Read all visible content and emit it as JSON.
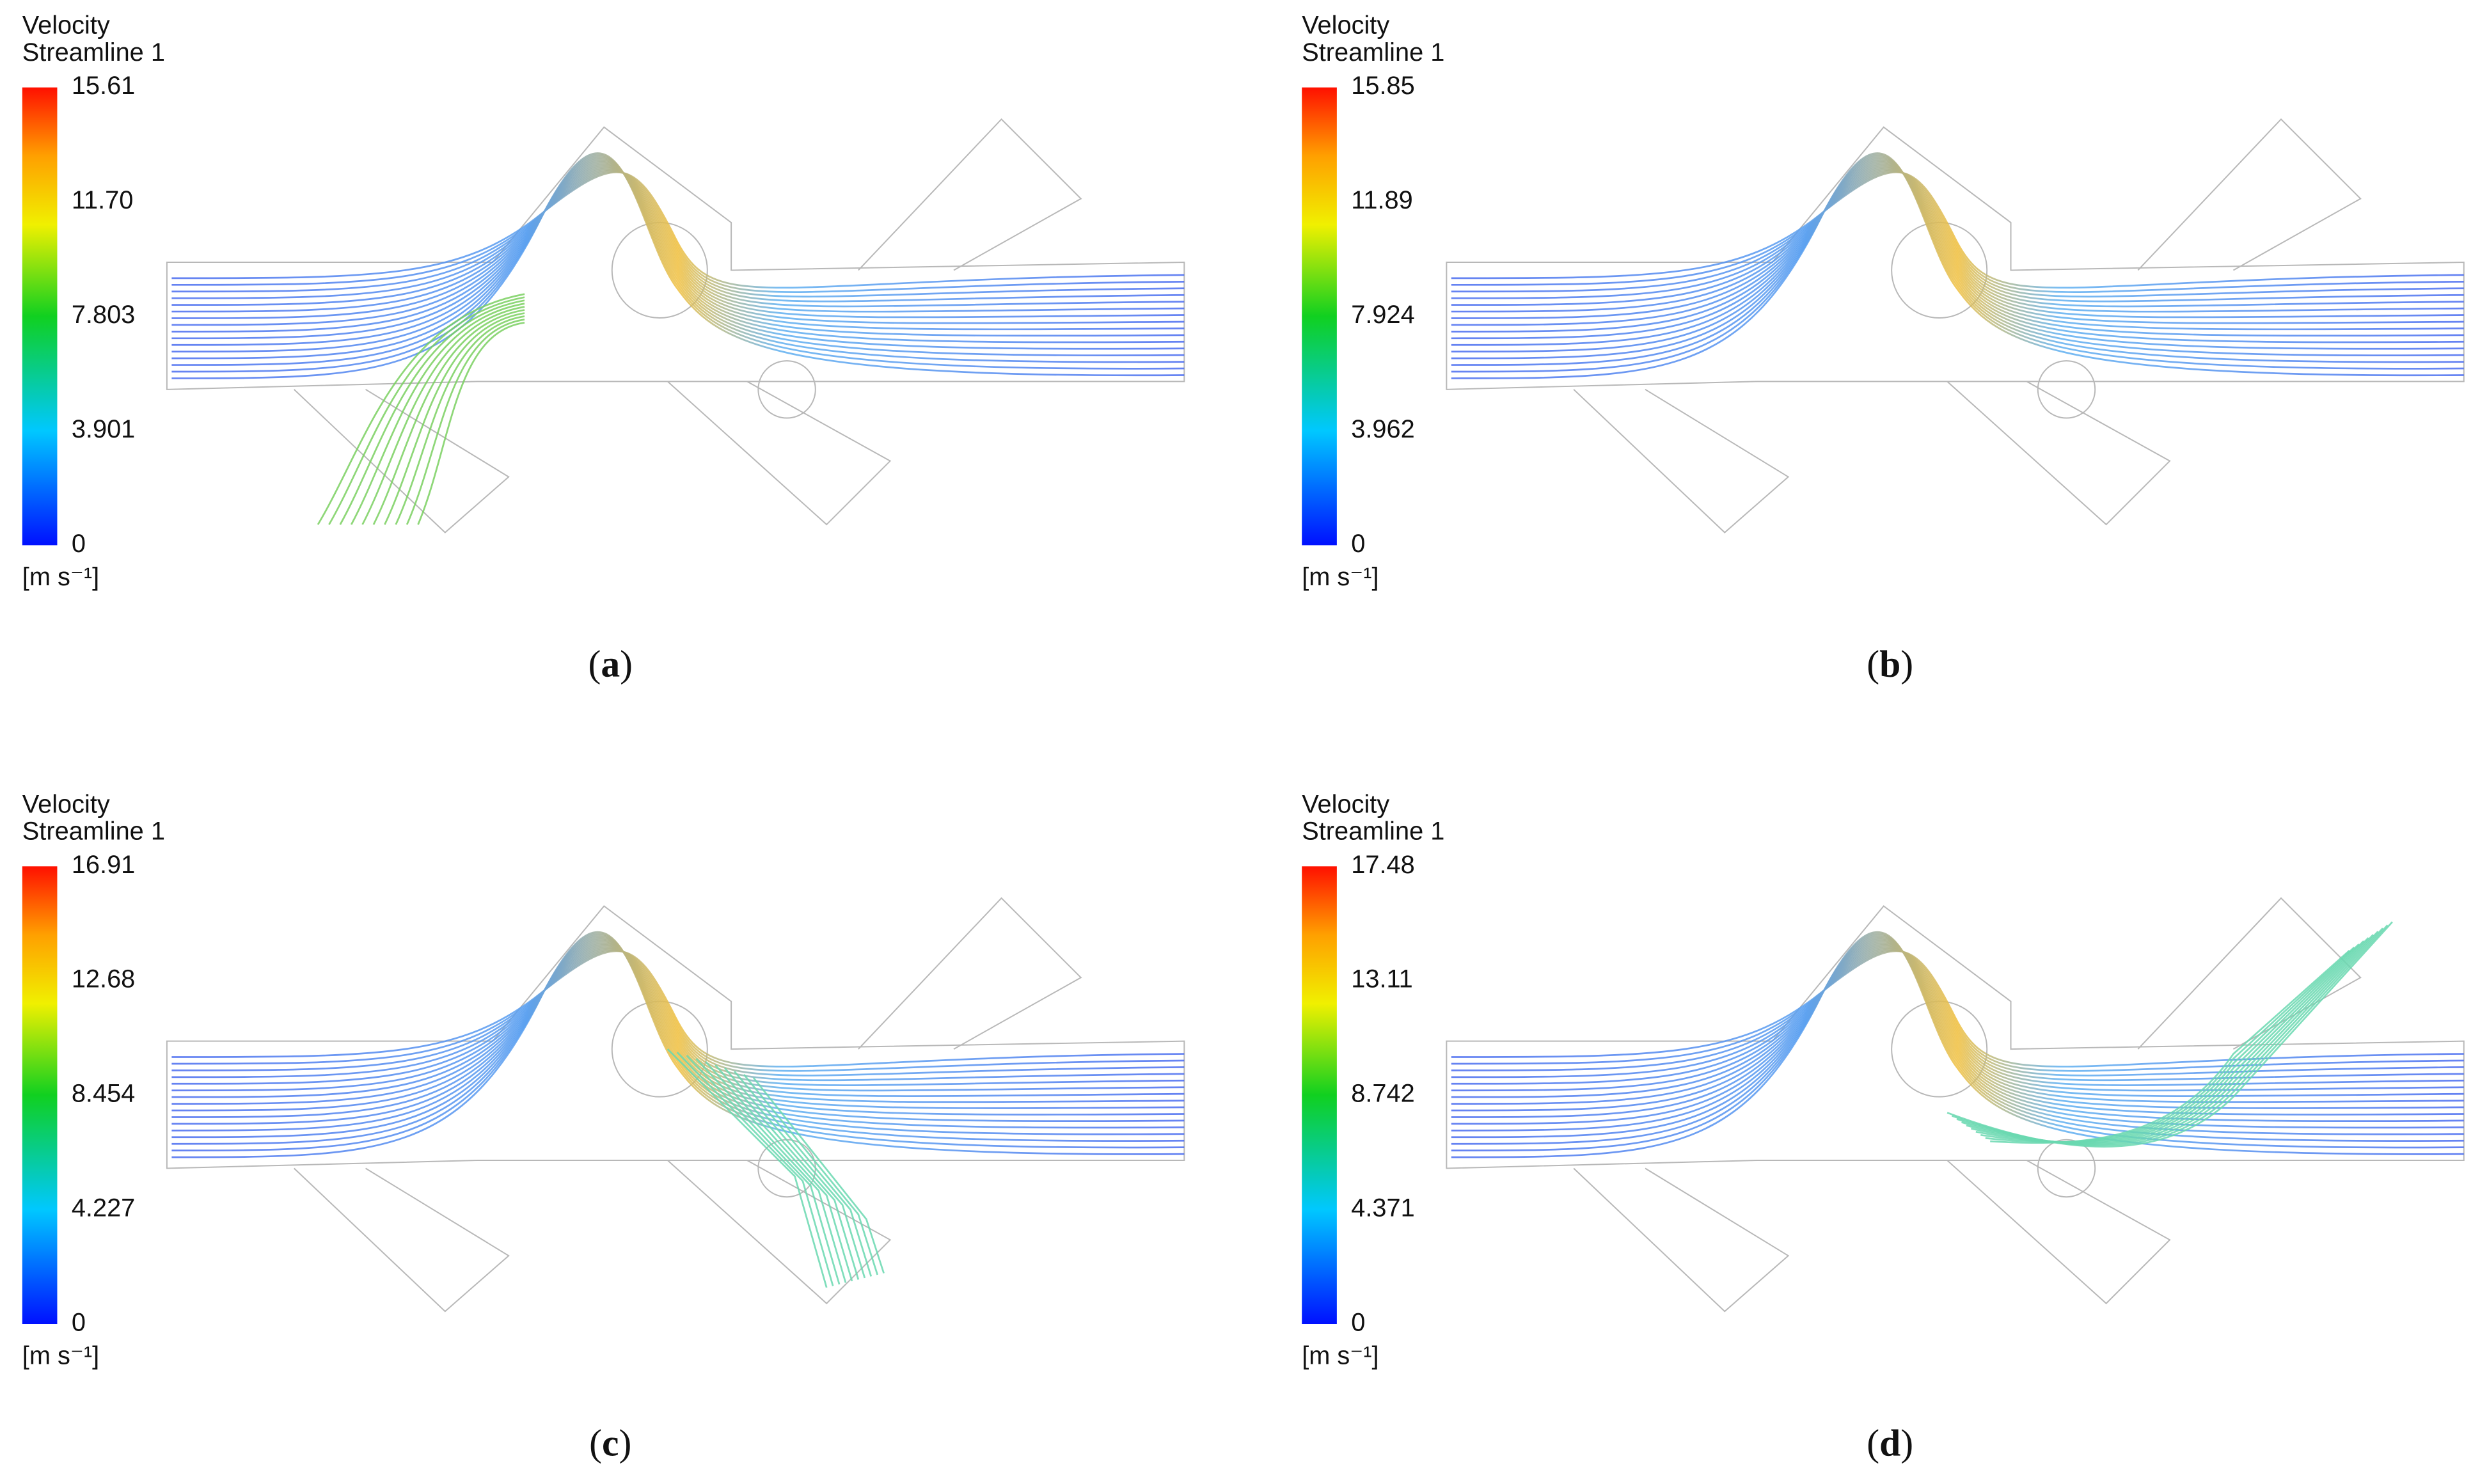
{
  "panels": [
    {
      "legend": {
        "title": [
          "Velocity",
          "Streamline 1"
        ],
        "ticks": [
          "15.61",
          "11.70",
          "7.803",
          "3.901",
          "0"
        ],
        "unit": "[m s⁻¹]"
      },
      "caption": [
        "(",
        "a",
        ")"
      ]
    },
    {
      "legend": {
        "title": [
          "Velocity",
          "Streamline 1"
        ],
        "ticks": [
          "15.85",
          "11.89",
          "7.924",
          "3.962",
          "0"
        ],
        "unit": "[m s⁻¹]"
      },
      "caption": [
        "(",
        "b",
        ")"
      ]
    },
    {
      "legend": {
        "title": [
          "Velocity",
          "Streamline 1"
        ],
        "ticks": [
          "16.91",
          "12.68",
          "8.454",
          "4.227",
          "0"
        ],
        "unit": "[m s⁻¹]"
      },
      "caption": [
        "(",
        "c",
        ")"
      ]
    },
    {
      "legend": {
        "title": [
          "Velocity",
          "Streamline 1"
        ],
        "ticks": [
          "17.48",
          "13.11",
          "8.742",
          "4.371",
          "0"
        ],
        "unit": "[m s⁻¹]"
      },
      "caption": [
        "(",
        "d",
        ")"
      ]
    }
  ]
}
